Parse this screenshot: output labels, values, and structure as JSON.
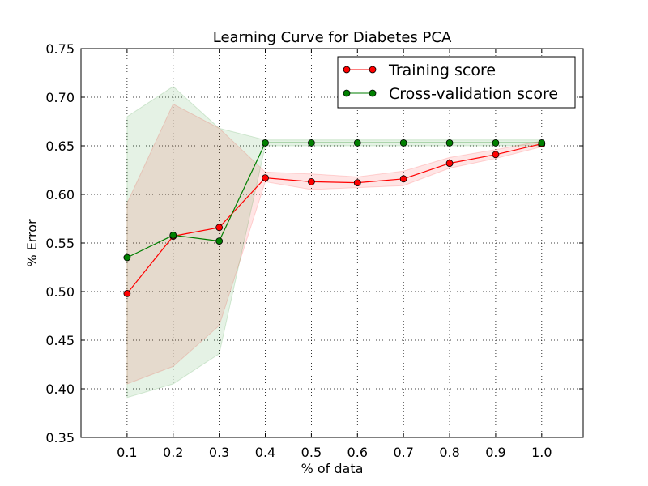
{
  "chart_data": {
    "type": "line",
    "title": "Learning Curve for Diabetes PCA",
    "xlabel": "% of data",
    "ylabel": "% Error",
    "xlim": [
      0.0,
      1.09
    ],
    "ylim": [
      0.35,
      0.75
    ],
    "xticks": [
      "0.1",
      "0.2",
      "0.3",
      "0.4",
      "0.5",
      "0.6",
      "0.7",
      "0.8",
      "0.9",
      "1.0"
    ],
    "yticks": [
      "0.35",
      "0.40",
      "0.45",
      "0.50",
      "0.55",
      "0.60",
      "0.65",
      "0.70",
      "0.75"
    ],
    "grid": true,
    "legend_position": "top-right",
    "x": [
      0.1,
      0.2,
      0.3,
      0.4,
      0.5,
      0.6,
      0.7,
      0.8,
      0.9,
      1.0
    ],
    "series": [
      {
        "name": "Training score",
        "color": "#ff0000",
        "values": [
          0.498,
          0.557,
          0.566,
          0.617,
          0.613,
          0.612,
          0.616,
          0.632,
          0.641,
          0.652
        ],
        "band_low": [
          0.405,
          0.423,
          0.465,
          0.613,
          0.605,
          0.607,
          0.609,
          0.627,
          0.637,
          0.649
        ],
        "band_high": [
          0.591,
          0.693,
          0.668,
          0.623,
          0.621,
          0.618,
          0.624,
          0.638,
          0.646,
          0.655
        ]
      },
      {
        "name": "Cross-validation score",
        "color": "#007f00",
        "values": [
          0.535,
          0.558,
          0.552,
          0.653,
          0.653,
          0.653,
          0.653,
          0.653,
          0.653,
          0.653
        ],
        "band_low": [
          0.391,
          0.405,
          0.436,
          0.65,
          0.65,
          0.65,
          0.65,
          0.65,
          0.65,
          0.65
        ],
        "band_high": [
          0.68,
          0.711,
          0.668,
          0.656,
          0.656,
          0.656,
          0.656,
          0.656,
          0.656,
          0.656
        ]
      }
    ]
  }
}
